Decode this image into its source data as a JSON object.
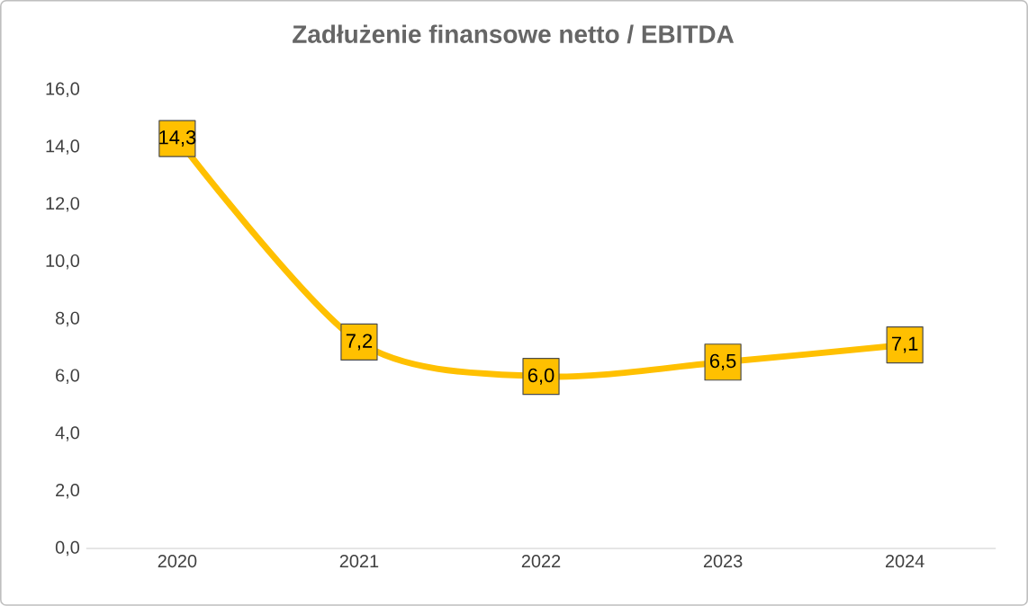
{
  "chart_data": {
    "type": "line",
    "title": "Zadłużenie finansowe netto / EBITDA",
    "categories": [
      "2020",
      "2021",
      "2022",
      "2023",
      "2024"
    ],
    "series": [
      {
        "color": "#ffc000",
        "marker": "square",
        "values": [
          14.3,
          7.2,
          6.0,
          6.5,
          7.1
        ],
        "value_labels": [
          "14,3",
          "7,2",
          "6,0",
          "6,5",
          "7,1"
        ]
      }
    ],
    "ylim": [
      0,
      16
    ],
    "yticks": [
      {
        "value": 0,
        "label": "0,0"
      },
      {
        "value": 2,
        "label": "2,0"
      },
      {
        "value": 4,
        "label": "4,0"
      },
      {
        "value": 6,
        "label": "6,0"
      },
      {
        "value": 8,
        "label": "8,0"
      },
      {
        "value": 10,
        "label": "10,0"
      },
      {
        "value": 12,
        "label": "12,0"
      },
      {
        "value": 14,
        "label": "14,0"
      },
      {
        "value": 16,
        "label": "16,0"
      }
    ],
    "grid": false
  }
}
